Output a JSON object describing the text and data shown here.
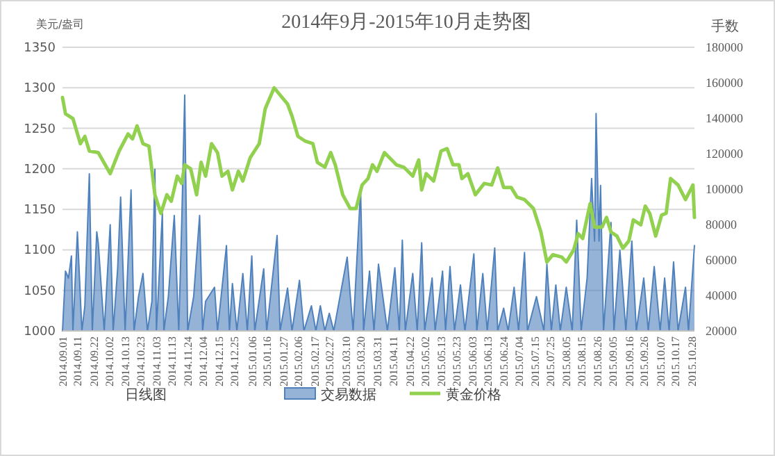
{
  "chart_data": {
    "type": "line",
    "title": "2014年9月-2015年10月走势图",
    "ylabel": "美元/盎司",
    "y2label": "手数",
    "annotations": [
      "日线图"
    ],
    "xlim": [
      "2014-09-01",
      "2015-10-30"
    ],
    "xticks": [
      {
        "value": "2014-09-01",
        "label": "2014.09.01"
      },
      {
        "value": "2014-09-11",
        "label": "2014.09.11"
      },
      {
        "value": "2014-09-22",
        "label": "2014.09.22"
      },
      {
        "value": "2014-10-02",
        "label": "2014.10.02"
      },
      {
        "value": "2014-10-13",
        "label": "2014.10.13"
      },
      {
        "value": "2014-10-23",
        "label": "2014.10.23"
      },
      {
        "value": "2014-11-03",
        "label": "2014.11.03"
      },
      {
        "value": "2014-11-13",
        "label": "2014.11.13"
      },
      {
        "value": "2014-11-24",
        "label": "2014.11.24"
      },
      {
        "value": "2014-12-04",
        "label": "2014.12.04"
      },
      {
        "value": "2014-12-15",
        "label": "2014.12.15"
      },
      {
        "value": "2014-12-25",
        "label": "2014.12.25"
      },
      {
        "value": "2015-01-06",
        "label": "2015.01.06"
      },
      {
        "value": "2015-01-16",
        "label": "2015.01.16"
      },
      {
        "value": "2015-01-27",
        "label": "2015.01.27"
      },
      {
        "value": "2015-02-06",
        "label": "2015.02.06"
      },
      {
        "value": "2015-02-17",
        "label": "2015.02.17"
      },
      {
        "value": "2015-02-27",
        "label": "2015.02.27"
      },
      {
        "value": "2015-03-10",
        "label": "2015.03.10"
      },
      {
        "value": "2015-03-20",
        "label": "2015.03.20"
      },
      {
        "value": "2015-03-31",
        "label": "2015.03.31"
      },
      {
        "value": "2015-04-11",
        "label": "2015.04.11"
      },
      {
        "value": "2015-04-22",
        "label": "2015.04.22"
      },
      {
        "value": "2015-05-02",
        "label": "2015.05.02"
      },
      {
        "value": "2015-05-13",
        "label": "2015.05.13"
      },
      {
        "value": "2015-05-23",
        "label": "2015.05.23"
      },
      {
        "value": "2015-06-03",
        "label": "2015.06.03"
      },
      {
        "value": "2015-06-13",
        "label": "2015.06.13"
      },
      {
        "value": "2015-06-24",
        "label": "2015.06.24"
      },
      {
        "value": "2015-07-04",
        "label": "2015.07.04"
      },
      {
        "value": "2015-07-15",
        "label": "2015.07.15"
      },
      {
        "value": "2015-07-25",
        "label": "2015.07.25"
      },
      {
        "value": "2015-08-05",
        "label": "2015.08.05"
      },
      {
        "value": "2015-08-15",
        "label": "2015.08.15"
      },
      {
        "value": "2015-08-26",
        "label": "2015.08.26"
      },
      {
        "value": "2015-09-05",
        "label": "2015.09.05"
      },
      {
        "value": "2015-09-16",
        "label": "2015.09.16"
      },
      {
        "value": "2015-09-26",
        "label": "2015.09.26"
      },
      {
        "value": "2015-10-07",
        "label": "2015.10.07"
      },
      {
        "value": "2015-10-17",
        "label": "2015.10.17"
      },
      {
        "value": "2015-10-28",
        "label": "2015.10.28"
      }
    ],
    "ylim": [
      1000,
      1350
    ],
    "yticks": [
      1000,
      1050,
      1100,
      1150,
      1200,
      1250,
      1300,
      1350
    ],
    "y2lim": [
      20000,
      180000
    ],
    "y2ticks": [
      20000,
      40000,
      60000,
      80000,
      100000,
      120000,
      140000,
      160000,
      180000
    ],
    "grid": "y",
    "legend": "bottom",
    "series": [
      {
        "name": "交易数据",
        "type": "area",
        "axis": "y2",
        "color": "#4f81bd",
        "x": [
          "2014-09-01",
          "2014-09-03",
          "2014-09-05",
          "2014-09-07",
          "2014-09-08",
          "2014-09-11",
          "2014-09-14",
          "2014-09-16",
          "2014-09-19",
          "2014-09-21",
          "2014-09-24",
          "2014-09-25",
          "2014-09-29",
          "2014-10-03",
          "2014-10-05",
          "2014-10-08",
          "2014-10-10",
          "2014-10-13",
          "2014-10-17",
          "2014-10-19",
          "2014-10-22",
          "2014-10-25",
          "2014-10-28",
          "2014-10-31",
          "2014-11-02",
          "2014-11-03",
          "2014-11-07",
          "2014-11-08",
          "2014-11-11",
          "2014-11-15",
          "2014-11-18",
          "2014-11-20",
          "2014-11-22",
          "2014-11-24",
          "2014-11-28",
          "2014-12-02",
          "2014-12-04",
          "2014-12-06",
          "2014-12-12",
          "2014-12-14",
          "2014-12-20",
          "2014-12-22",
          "2014-12-24",
          "2014-12-27",
          "2014-12-31",
          "2015-01-03",
          "2015-01-06",
          "2015-01-08",
          "2015-01-14",
          "2015-01-16",
          "2015-01-23",
          "2015-01-25",
          "2015-01-30",
          "2015-02-02",
          "2015-02-07",
          "2015-02-10",
          "2015-02-15",
          "2015-02-18",
          "2015-02-21",
          "2015-02-24",
          "2015-02-27",
          "2015-03-02",
          "2015-03-11",
          "2015-03-15",
          "2015-03-20",
          "2015-03-22",
          "2015-03-26",
          "2015-03-29",
          "2015-04-01",
          "2015-04-07",
          "2015-04-12",
          "2015-04-15",
          "2015-04-17",
          "2015-04-19",
          "2015-04-24",
          "2015-04-27",
          "2015-04-30",
          "2015-05-02",
          "2015-05-07",
          "2015-05-09",
          "2015-05-14",
          "2015-05-16",
          "2015-05-19",
          "2015-05-22",
          "2015-05-26",
          "2015-05-29",
          "2015-06-04",
          "2015-06-06",
          "2015-06-10",
          "2015-06-13",
          "2015-06-18",
          "2015-06-20",
          "2015-06-24",
          "2015-06-27",
          "2015-07-01",
          "2015-07-04",
          "2015-07-08",
          "2015-07-10",
          "2015-07-16",
          "2015-07-21",
          "2015-07-23",
          "2015-07-26",
          "2015-07-29",
          "2015-08-01",
          "2015-08-05",
          "2015-08-09",
          "2015-08-12",
          "2015-08-15",
          "2015-08-19",
          "2015-08-22",
          "2015-08-24",
          "2015-08-25",
          "2015-08-27",
          "2015-08-28",
          "2015-08-30",
          "2015-09-04",
          "2015-09-06",
          "2015-09-10",
          "2015-09-14",
          "2015-09-18",
          "2015-09-21",
          "2015-09-26",
          "2015-09-29",
          "2015-10-03",
          "2015-10-07",
          "2015-10-10",
          "2015-10-13",
          "2015-10-16",
          "2015-10-19",
          "2015-10-24",
          "2015-10-26",
          "2015-10-30"
        ],
        "values": [
          20000,
          53700,
          49800,
          62300,
          20000,
          75900,
          20000,
          34100,
          108600,
          20000,
          75900,
          69400,
          20000,
          79900,
          20000,
          55000,
          95500,
          20000,
          99500,
          20000,
          39300,
          52400,
          20000,
          36700,
          111200,
          20000,
          86400,
          20000,
          39300,
          85100,
          20000,
          81200,
          153000,
          20000,
          39300,
          85100,
          20000,
          36700,
          44600,
          20000,
          68100,
          20000,
          46700,
          20000,
          52400,
          20000,
          62300,
          20000,
          55000,
          20000,
          73800,
          20000,
          44100,
          20000,
          48500,
          20000,
          34100,
          20000,
          34100,
          20000,
          29900,
          20000,
          61600,
          20000,
          99500,
          20000,
          53700,
          20000,
          57600,
          20000,
          55600,
          20000,
          71200,
          20000,
          52400,
          20000,
          69700,
          20000,
          49800,
          20000,
          53700,
          20000,
          56300,
          20000,
          45900,
          20000,
          63400,
          20000,
          52400,
          20000,
          66800,
          20000,
          32800,
          20000,
          44600,
          20000,
          64200,
          20000,
          39300,
          20000,
          57600,
          20000,
          45900,
          20000,
          44600,
          20000,
          82500,
          20000,
          49800,
          106000,
          70700,
          142600,
          70700,
          102100,
          20000,
          81200,
          20000,
          65500,
          20000,
          70700,
          20000,
          49800,
          20000,
          56300,
          20000,
          49800,
          20000,
          58900,
          20000,
          44600,
          20000,
          68100
        ]
      },
      {
        "name": "黄金价格",
        "type": "line",
        "color": "#92d050",
        "x": [
          "2014-09-01",
          "2014-09-03",
          "2014-09-08",
          "2014-09-13",
          "2014-09-16",
          "2014-09-19",
          "2014-09-25",
          "2014-10-03",
          "2014-10-09",
          "2014-10-15",
          "2014-10-18",
          "2014-10-21",
          "2014-10-25",
          "2014-10-29",
          "2014-11-02",
          "2014-11-06",
          "2014-11-10",
          "2014-11-13",
          "2014-11-17",
          "2014-11-20",
          "2014-11-22",
          "2014-11-26",
          "2014-11-30",
          "2014-12-03",
          "2014-12-06",
          "2014-12-10",
          "2014-12-14",
          "2014-12-17",
          "2014-12-21",
          "2014-12-24",
          "2014-12-28",
          "2014-12-31",
          "2015-01-05",
          "2015-01-11",
          "2015-01-15",
          "2015-01-21",
          "2015-01-25",
          "2015-01-30",
          "2015-02-02",
          "2015-02-06",
          "2015-02-11",
          "2015-02-16",
          "2015-02-19",
          "2015-02-24",
          "2015-02-28",
          "2015-03-03",
          "2015-03-08",
          "2015-03-13",
          "2015-03-17",
          "2015-03-21",
          "2015-03-25",
          "2015-03-28",
          "2015-03-31",
          "2015-04-05",
          "2015-04-13",
          "2015-04-18",
          "2015-04-24",
          "2015-04-28",
          "2015-04-30",
          "2015-05-03",
          "2015-05-08",
          "2015-05-13",
          "2015-05-17",
          "2015-05-21",
          "2015-05-25",
          "2015-05-27",
          "2015-05-31",
          "2015-06-05",
          "2015-06-11",
          "2015-06-16",
          "2015-06-20",
          "2015-06-24",
          "2015-06-29",
          "2015-07-03",
          "2015-07-08",
          "2015-07-14",
          "2015-07-19",
          "2015-07-23",
          "2015-07-27",
          "2015-08-02",
          "2015-08-05",
          "2015-08-10",
          "2015-08-13",
          "2015-08-16",
          "2015-08-21",
          "2015-08-24",
          "2015-08-29",
          "2015-09-01",
          "2015-09-04",
          "2015-09-08",
          "2015-09-12",
          "2015-09-16",
          "2015-09-19",
          "2015-09-24",
          "2015-09-27",
          "2015-09-30",
          "2015-10-04",
          "2015-10-08",
          "2015-10-11",
          "2015-10-14",
          "2015-10-19",
          "2015-10-24",
          "2015-10-29",
          "2015-10-30"
        ],
        "values": [
          1288,
          1268,
          1262,
          1231,
          1240,
          1222,
          1220,
          1194,
          1222,
          1243,
          1237,
          1253,
          1231,
          1228,
          1168,
          1145,
          1168,
          1160,
          1191,
          1182,
          1205,
          1200,
          1168,
          1208,
          1191,
          1231,
          1220,
          1191,
          1197,
          1174,
          1197,
          1185,
          1214,
          1231,
          1274,
          1300,
          1291,
          1280,
          1265,
          1240,
          1234,
          1231,
          1208,
          1202,
          1220,
          1205,
          1168,
          1151,
          1151,
          1180,
          1188,
          1205,
          1197,
          1220,
          1205,
          1202,
          1191,
          1211,
          1174,
          1194,
          1185,
          1222,
          1225,
          1205,
          1205,
          1188,
          1194,
          1168,
          1182,
          1180,
          1201,
          1177,
          1177,
          1165,
          1162,
          1151,
          1122,
          1085,
          1094,
          1091,
          1085,
          1100,
          1120,
          1114,
          1157,
          1128,
          1128,
          1140,
          1122,
          1117,
          1102,
          1111,
          1137,
          1131,
          1154,
          1145,
          1117,
          1143,
          1145,
          1188,
          1180,
          1162,
          1180,
          1140
        ]
      }
    ]
  }
}
